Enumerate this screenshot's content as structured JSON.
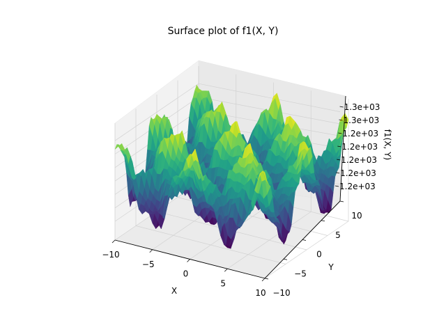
{
  "chart_data": {
    "type": "surface",
    "title": "Surface plot of f1(X, Y)",
    "xlabel": "X",
    "ylabel": "Y",
    "zlabel": "f1(X, Y)",
    "x_ticks": [
      "−10",
      "−5",
      "0",
      "5",
      "10"
    ],
    "y_ticks": [
      "−10",
      "−5",
      "0",
      "5",
      "10"
    ],
    "z_ticks": [
      "1.2e+03",
      "1.2e+03",
      "1.2e+03",
      "1.2e+03",
      "1.2e+03",
      "1.3e+03",
      "1.3e+03"
    ],
    "xlim": [
      -10,
      10
    ],
    "ylim": [
      -10,
      10
    ],
    "colormap": "viridis",
    "grid": true
  }
}
